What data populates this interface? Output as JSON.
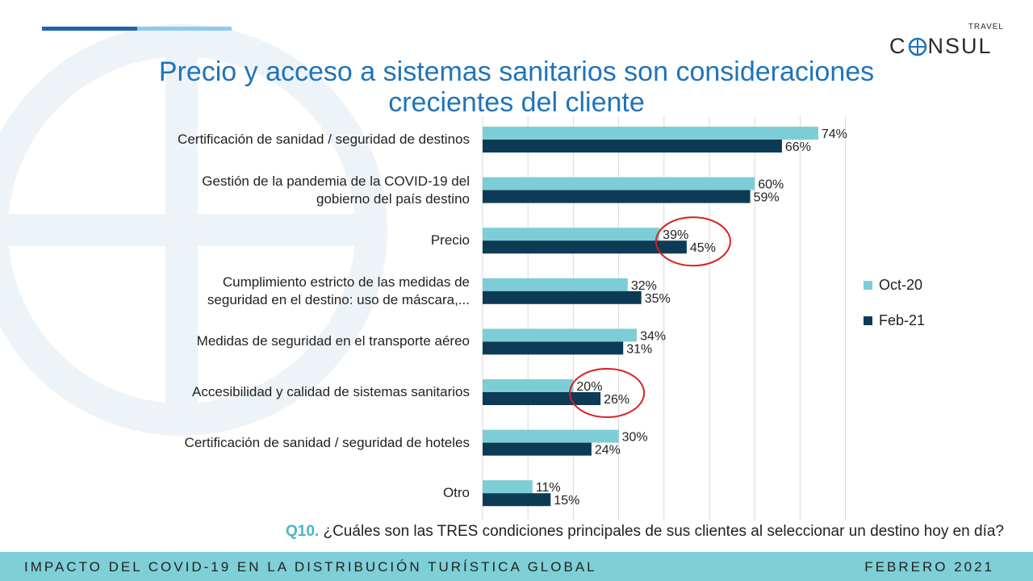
{
  "slide": {
    "title_line1": "Precio y acceso a sistemas sanitarios son consideraciones",
    "title_line2": "crecientes del cliente",
    "logo_small": "TRAVEL",
    "logo_pre": "C",
    "logo_post": "NSUL",
    "question_prefix": "Q10.",
    "question_text": " ¿Cuáles son las TRES condiciones principales  de sus clientes al seleccionar un destino hoy en día?",
    "footer_left": "IMPACTO DEL COVID-19 EN LA DISTRIBUCIÓN TURÍSTICA GLOBAL",
    "footer_right": "FEBRERO 2021"
  },
  "colors": {
    "oct20": "#7dcdd6",
    "feb21": "#0d3b55",
    "highlight": "#d62020",
    "title": "#1f74bb"
  },
  "chart_data": {
    "type": "bar",
    "orientation": "horizontal",
    "categories": [
      "Certificación de sanidad / seguridad de destinos",
      "Gestión de la pandemia de la COVID-19 del gobierno del país destino",
      "Precio",
      "Cumplimiento estricto de las medidas de seguridad en el destino: uso de máscara,...",
      "Medidas de seguridad en el transporte aéreo",
      "Accesibilidad y calidad de sistemas sanitarios",
      "Certificación de sanidad / seguridad de hoteles",
      "Otro"
    ],
    "category_lines": [
      [
        "Certificación de sanidad / seguridad de destinos"
      ],
      [
        "Gestión de la pandemia de la COVID-19 del",
        "gobierno del país destino"
      ],
      [
        "Precio"
      ],
      [
        "Cumplimiento estricto de las medidas de",
        "seguridad en el destino: uso de máscara,..."
      ],
      [
        "Medidas de seguridad en el transporte aéreo"
      ],
      [
        "Accesibilidad y calidad de sistemas sanitarios"
      ],
      [
        "Certificación de sanidad / seguridad de hoteles"
      ],
      [
        "Otro"
      ]
    ],
    "series": [
      {
        "name": "Oct-20",
        "values": [
          74,
          60,
          39,
          32,
          34,
          20,
          30,
          11
        ]
      },
      {
        "name": "Feb-21",
        "values": [
          66,
          59,
          45,
          35,
          31,
          26,
          24,
          15
        ]
      }
    ],
    "value_suffix": "%",
    "xlim": [
      0,
      80
    ],
    "grid": true,
    "legend": "right",
    "highlighted_categories": [
      "Precio",
      "Accesibilidad y calidad de sistemas sanitarios"
    ]
  }
}
